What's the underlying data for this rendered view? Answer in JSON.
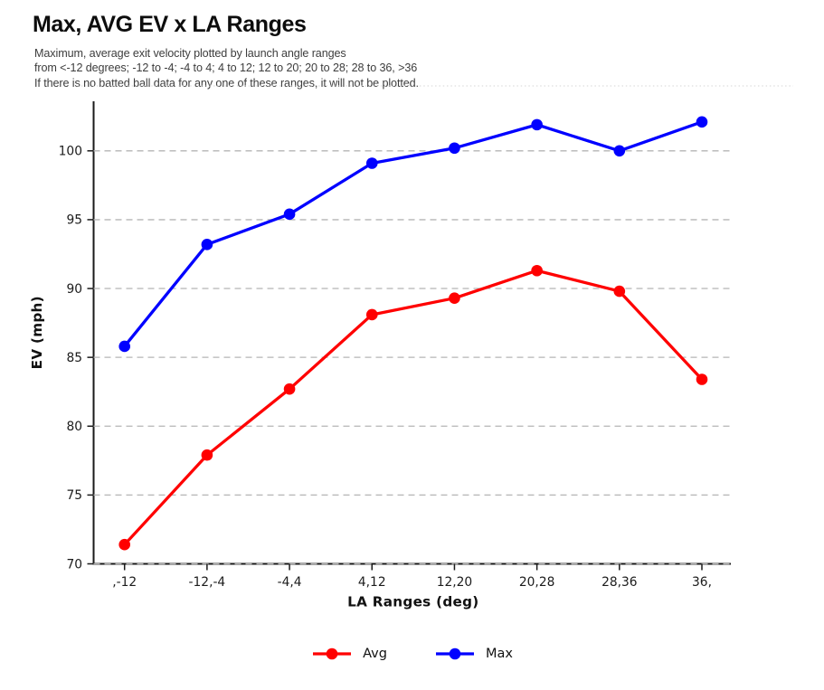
{
  "header": {
    "title": "Max, AVG EV x LA Ranges",
    "subtitle_lines": [
      "Maximum, average exit velocity plotted by launch angle ranges",
      "from <-12 degrees; -12 to -4; -4 to 4; 4 to 12; 12 to 20; 20 to 28; 28 to 36, >36",
      "If there is no batted ball data for any one of these ranges, it will not be plotted."
    ]
  },
  "chart_data": {
    "type": "line",
    "title": "Max, AVG EV x LA Ranges",
    "xlabel": "LA Ranges (deg)",
    "ylabel": "EV (mph)",
    "categories": [
      ",-12",
      "-12,-4",
      "-4,4",
      "4,12",
      "12,20",
      "20,28",
      "28,36",
      "36,"
    ],
    "series": [
      {
        "name": "Avg",
        "color": "#ff0000",
        "values": [
          71.4,
          77.9,
          82.7,
          88.1,
          89.3,
          91.3,
          89.8,
          83.4
        ]
      },
      {
        "name": "Max",
        "color": "#0000ff",
        "values": [
          85.8,
          93.2,
          95.4,
          99.1,
          100.2,
          101.9,
          100.0,
          102.1
        ]
      }
    ],
    "yticks": [
      70,
      75,
      80,
      85,
      90,
      95,
      100
    ],
    "ylim": [
      70,
      103.6
    ],
    "grid": "horizontal-dashed",
    "legend_position": "bottom-center"
  },
  "colors": {
    "grid": "#b5b5b5",
    "axis": "#1a1a1a",
    "tick_text": "#1c1c1c",
    "subtitle_text": "#3d3d3d"
  }
}
